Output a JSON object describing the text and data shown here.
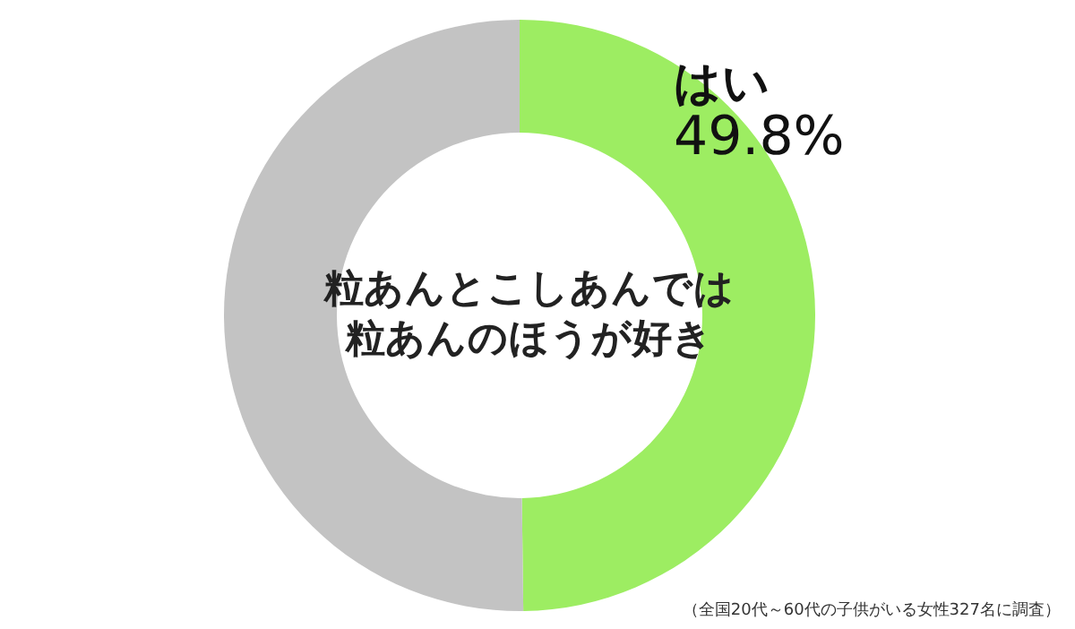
{
  "chart_data": {
    "type": "donut",
    "title": "粒あんとこしあんでは粒あんのほうが好き",
    "categories": [
      "はい",
      null
    ],
    "values": [
      49.8,
      50.2
    ],
    "value_labels": [
      "49.8%",
      null
    ],
    "colors": [
      "#9ded62",
      "#c3c3c3"
    ],
    "annotations": [
      "（全国20代～60代の子供がいる女性327名に調査）"
    ]
  }
}
